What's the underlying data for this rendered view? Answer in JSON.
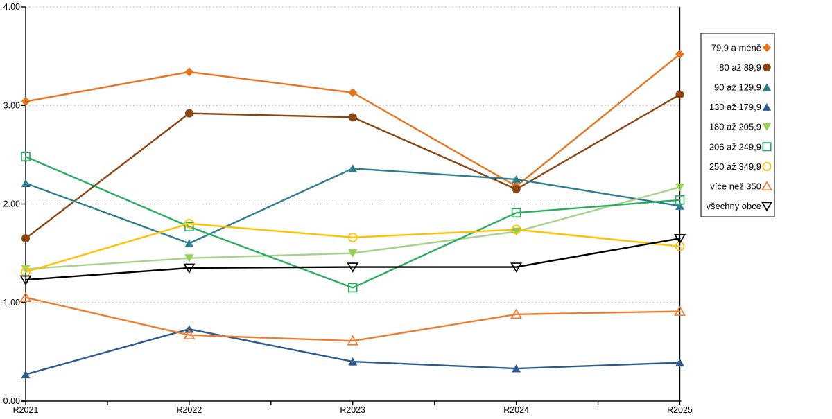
{
  "chart_data": {
    "type": "line",
    "title": "",
    "xlabel": "",
    "ylabel": "",
    "categories": [
      "R2021",
      "R2022",
      "R2023",
      "R2024",
      "R2025"
    ],
    "series": [
      {
        "name": "79,9 a méně",
        "marker": "diamond-filled",
        "color": "#E8751E",
        "values": [
          3.04,
          3.34,
          3.13,
          2.18,
          3.52
        ]
      },
      {
        "name": "80 až 89,9",
        "marker": "circle-filled",
        "color": "#8B4513",
        "values": [
          1.65,
          2.92,
          2.88,
          2.15,
          3.11
        ]
      },
      {
        "name": "90 až 129,9",
        "marker": "triangle-up-filled",
        "color": "#2E7D8F",
        "values": [
          2.21,
          1.6,
          2.36,
          2.25,
          1.98
        ]
      },
      {
        "name": "130 až 179,9",
        "marker": "triangle-up-filled",
        "color": "#2E5B8C",
        "values": [
          0.27,
          0.73,
          0.4,
          0.33,
          0.39
        ]
      },
      {
        "name": "180 až 205,9",
        "marker": "triangle-down-filled",
        "color": "#92D050",
        "line_color": "#A9D18E",
        "values": [
          1.34,
          1.45,
          1.5,
          1.72,
          2.17
        ]
      },
      {
        "name": "206 až 249,9",
        "marker": "square-open",
        "color": "#27AE60",
        "values": [
          2.48,
          1.77,
          1.15,
          1.91,
          2.04
        ]
      },
      {
        "name": "250 až 349,9",
        "marker": "circle-open",
        "color": "#FFC000",
        "values": [
          1.31,
          1.8,
          1.66,
          1.74,
          1.57
        ]
      },
      {
        "name": "více než 350",
        "marker": "triangle-up-open",
        "color": "#ED7D31",
        "values": [
          1.05,
          0.67,
          0.61,
          0.88,
          0.91
        ]
      },
      {
        "name": "všechny obce",
        "marker": "triangle-down-open",
        "color": "#000000",
        "values": [
          1.23,
          1.35,
          1.36,
          1.36,
          1.65
        ]
      }
    ],
    "y_axis": {
      "min": 0,
      "max": 4,
      "step": 1,
      "tick_labels": [
        "0.00",
        "1.00",
        "2.00",
        "3.00",
        "4.00"
      ]
    },
    "x_axis": {
      "tick_labels": [
        "R2021",
        "R2022",
        "R2023",
        "R2024",
        "R2025"
      ],
      "minor_ticks_between_labels": true
    },
    "grid": "horizontal-dotted",
    "grid_color": "#A6A6A6",
    "axis_color": "#000000",
    "legend": {
      "position": "right",
      "border_color": "#000000",
      "background": "#ffffff",
      "marker_side": "right"
    }
  }
}
